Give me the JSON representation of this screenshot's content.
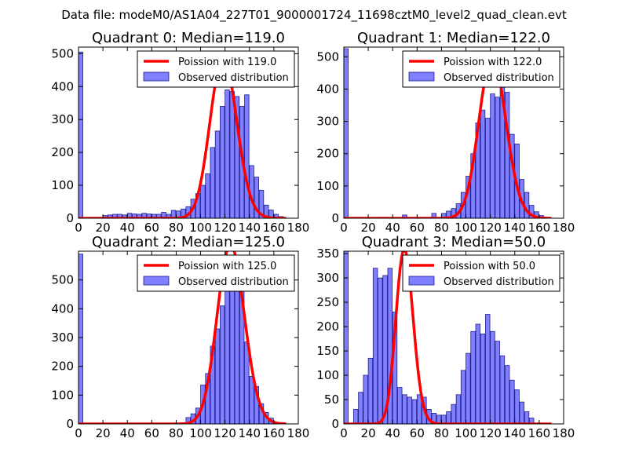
{
  "figure": {
    "suptitle": "Data file: modeM0/AS1A04_227T01_9000001724_11698cztM0_level2_quad_clean.evt",
    "bar_color": "#7f7fff",
    "bar_edge": "#1f1f8f",
    "line_color": "#ff0000",
    "x_ticks": [
      0,
      20,
      40,
      60,
      80,
      100,
      120,
      140,
      160,
      180
    ],
    "x_tick_labels": [
      "0",
      "20",
      "40",
      "60",
      "80",
      "100",
      "120",
      "140",
      "160",
      "180"
    ]
  },
  "chart_data": [
    {
      "type": "bar",
      "title": "Quadrant 0: Median=119.0",
      "median": 119.0,
      "xlim": [
        0,
        180
      ],
      "ylim": [
        0,
        520
      ],
      "y_ticks": [
        0,
        100,
        200,
        300,
        400,
        500
      ],
      "bin_width": 3.6,
      "legend": [
        "Poission with 119.0",
        "Observed distribution"
      ],
      "bins": [
        [
          0,
          505
        ],
        [
          20,
          8
        ],
        [
          24,
          10
        ],
        [
          28,
          12
        ],
        [
          32,
          12
        ],
        [
          36,
          10
        ],
        [
          40,
          15
        ],
        [
          44,
          13
        ],
        [
          48,
          12
        ],
        [
          52,
          15
        ],
        [
          56,
          13
        ],
        [
          60,
          12
        ],
        [
          64,
          12
        ],
        [
          68,
          18
        ],
        [
          72,
          12
        ],
        [
          76,
          24
        ],
        [
          80,
          22
        ],
        [
          84,
          28
        ],
        [
          88,
          35
        ],
        [
          92,
          58
        ],
        [
          96,
          75
        ],
        [
          100,
          100
        ],
        [
          104,
          135
        ],
        [
          108,
          215
        ],
        [
          112,
          265
        ],
        [
          116,
          340
        ],
        [
          120,
          390
        ],
        [
          124,
          385
        ],
        [
          128,
          370
        ],
        [
          132,
          340
        ],
        [
          136,
          375
        ],
        [
          140,
          160
        ],
        [
          144,
          125
        ],
        [
          148,
          85
        ],
        [
          152,
          40
        ],
        [
          156,
          25
        ],
        [
          160,
          12
        ],
        [
          164,
          5
        ]
      ]
    },
    {
      "type": "bar",
      "title": "Quadrant 1: Median=122.0",
      "median": 122.0,
      "xlim": [
        0,
        180
      ],
      "ylim": [
        0,
        530
      ],
      "y_ticks": [
        0,
        100,
        200,
        300,
        400,
        500
      ],
      "bin_width": 3.6,
      "legend": [
        "Poission with 122.0",
        "Observed distribution"
      ],
      "bins": [
        [
          0,
          525
        ],
        [
          48,
          10
        ],
        [
          72,
          15
        ],
        [
          80,
          15
        ],
        [
          84,
          22
        ],
        [
          88,
          30
        ],
        [
          92,
          45
        ],
        [
          96,
          80
        ],
        [
          100,
          130
        ],
        [
          104,
          200
        ],
        [
          108,
          295
        ],
        [
          112,
          335
        ],
        [
          116,
          310
        ],
        [
          120,
          385
        ],
        [
          124,
          375
        ],
        [
          128,
          440
        ],
        [
          132,
          390
        ],
        [
          136,
          260
        ],
        [
          140,
          230
        ],
        [
          144,
          120
        ],
        [
          148,
          80
        ],
        [
          152,
          40
        ],
        [
          156,
          20
        ],
        [
          160,
          8
        ]
      ]
    },
    {
      "type": "bar",
      "title": "Quadrant 2: Median=125.0",
      "median": 125.0,
      "xlim": [
        0,
        180
      ],
      "ylim": [
        0,
        600
      ],
      "y_ticks": [
        0,
        100,
        200,
        300,
        400,
        500
      ],
      "bin_width": 3.6,
      "legend": [
        "Poission with 125.0",
        "Observed distribution"
      ],
      "bins": [
        [
          0,
          590
        ],
        [
          88,
          22
        ],
        [
          92,
          35
        ],
        [
          96,
          55
        ],
        [
          100,
          135
        ],
        [
          104,
          175
        ],
        [
          108,
          270
        ],
        [
          112,
          330
        ],
        [
          116,
          410
        ],
        [
          120,
          520
        ],
        [
          124,
          555
        ],
        [
          128,
          500
        ],
        [
          132,
          470
        ],
        [
          136,
          285
        ],
        [
          140,
          165
        ],
        [
          144,
          130
        ],
        [
          148,
          70
        ],
        [
          152,
          40
        ],
        [
          156,
          20
        ]
      ]
    },
    {
      "type": "bar",
      "title": "Quadrant 3: Median=50.0",
      "median": 50.0,
      "xlim": [
        0,
        180
      ],
      "ylim": [
        0,
        355
      ],
      "y_ticks": [
        0,
        50,
        100,
        150,
        200,
        250,
        300,
        350
      ],
      "bin_width": 3.6,
      "legend": [
        "Poission with 50.0",
        "Observed distribution"
      ],
      "bins": [
        [
          0,
          355
        ],
        [
          8,
          30
        ],
        [
          12,
          65
        ],
        [
          16,
          100
        ],
        [
          20,
          135
        ],
        [
          24,
          320
        ],
        [
          28,
          300
        ],
        [
          32,
          305
        ],
        [
          36,
          320
        ],
        [
          40,
          230
        ],
        [
          44,
          75
        ],
        [
          48,
          60
        ],
        [
          52,
          55
        ],
        [
          56,
          50
        ],
        [
          60,
          60
        ],
        [
          64,
          55
        ],
        [
          68,
          30
        ],
        [
          72,
          22
        ],
        [
          76,
          18
        ],
        [
          80,
          18
        ],
        [
          84,
          25
        ],
        [
          88,
          40
        ],
        [
          92,
          60
        ],
        [
          96,
          110
        ],
        [
          100,
          145
        ],
        [
          104,
          190
        ],
        [
          108,
          205
        ],
        [
          112,
          185
        ],
        [
          116,
          225
        ],
        [
          120,
          190
        ],
        [
          124,
          170
        ],
        [
          128,
          140
        ],
        [
          132,
          120
        ],
        [
          136,
          90
        ],
        [
          140,
          70
        ],
        [
          144,
          45
        ],
        [
          148,
          25
        ],
        [
          152,
          12
        ]
      ]
    }
  ]
}
